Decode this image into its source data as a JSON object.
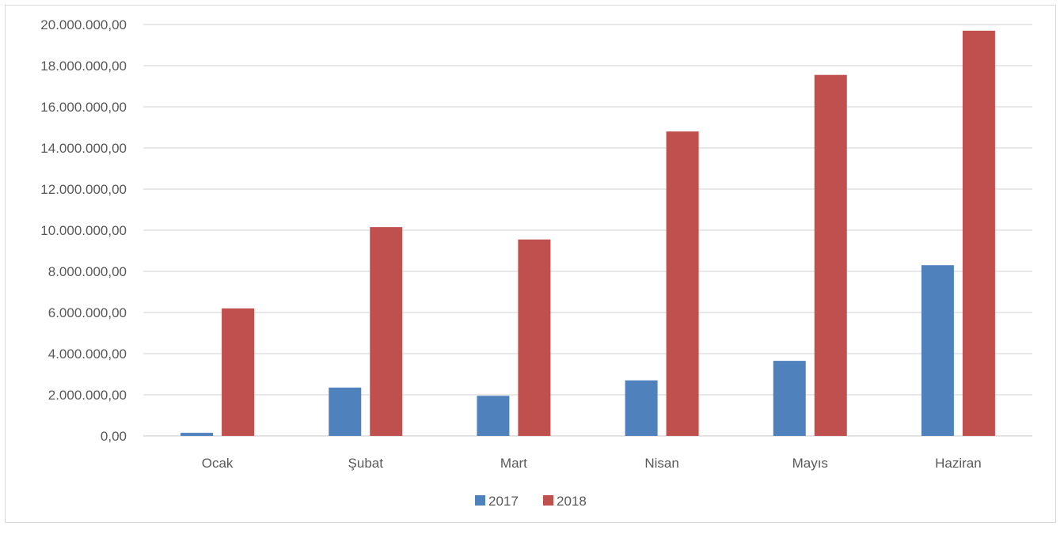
{
  "chart_data": {
    "type": "bar",
    "categories": [
      "Ocak",
      "Şubat",
      "Mart",
      "Nisan",
      "Mayıs",
      "Haziran"
    ],
    "series": [
      {
        "name": "2017",
        "color": "#4f81bd",
        "values": [
          150000,
          2350000,
          1950000,
          2700000,
          3650000,
          8300000
        ]
      },
      {
        "name": "2018",
        "color": "#c0504d",
        "values": [
          6200000,
          10150000,
          9550000,
          14800000,
          17550000,
          19700000
        ]
      }
    ],
    "y_ticks": [
      "0,00",
      "2.000.000,00",
      "4.000.000,00",
      "6.000.000,00",
      "8.000.000,00",
      "10.000.000,00",
      "12.000.000,00",
      "14.000.000,00",
      "16.000.000,00",
      "18.000.000,00",
      "20.000.000,00"
    ],
    "ylim": [
      0,
      20000000
    ],
    "grid": true,
    "gridline_color": "#d9d9d9",
    "legend_position": "bottom",
    "title": "",
    "xlabel": "",
    "ylabel": ""
  }
}
